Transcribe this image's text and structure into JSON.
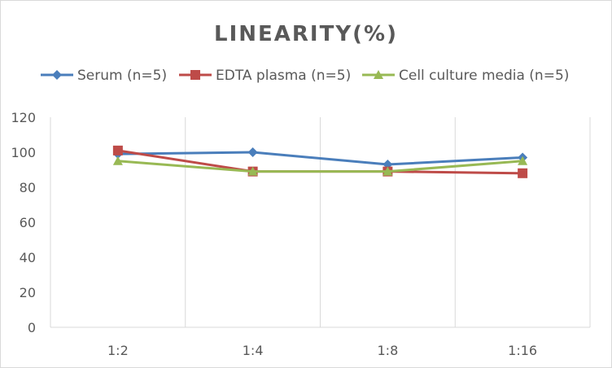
{
  "chart_data": {
    "type": "line",
    "title": "LINEARITY(%)",
    "categories": [
      "1:2",
      "1:4",
      "1:8",
      "1:16"
    ],
    "ylim": [
      0,
      120
    ],
    "yticks": [
      0,
      20,
      40,
      60,
      80,
      100,
      120
    ],
    "grid": "vertical",
    "legend": "top",
    "series": [
      {
        "name": "Serum (n=5)",
        "values": [
          99,
          100,
          93,
          97
        ],
        "color": "#4a7ebb",
        "marker": "diamond"
      },
      {
        "name": "EDTA plasma (n=5)",
        "values": [
          101,
          89,
          89,
          88
        ],
        "color": "#be4b48",
        "marker": "square"
      },
      {
        "name": "Cell culture media (n=5)",
        "values": [
          95,
          89,
          89,
          95
        ],
        "color": "#98b954",
        "marker": "triangle"
      }
    ]
  }
}
